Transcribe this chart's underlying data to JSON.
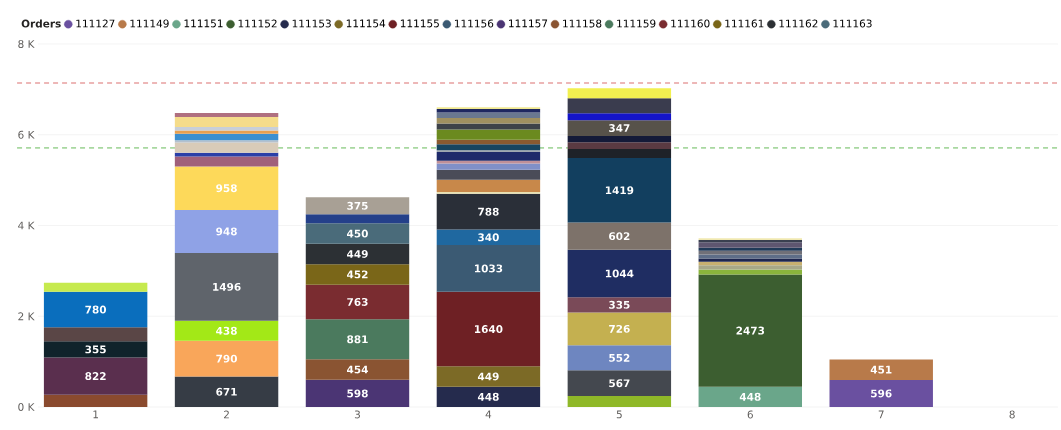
{
  "chart_data": {
    "type": "bar",
    "stacked": true,
    "legend_title": "Orders",
    "legend": "top left",
    "grid": "y",
    "categories": [
      "1",
      "2",
      "3",
      "4",
      "5",
      "6",
      "7",
      "8"
    ],
    "ylim": [
      0,
      8000
    ],
    "yticks": [
      {
        "value": 0,
        "label": "0 K"
      },
      {
        "value": 2000,
        "label": "2 K"
      },
      {
        "value": 4000,
        "label": "4 K"
      },
      {
        "value": 6000,
        "label": "6 K"
      },
      {
        "value": 8000,
        "label": "8 K"
      }
    ],
    "ref_lines": [
      {
        "axis": "y",
        "value": 7140,
        "color": "#e8a0a0",
        "line_style": "dashed"
      },
      {
        "axis": "y",
        "value": 5710,
        "color": "#a8d8a0",
        "line_style": "dashed"
      }
    ],
    "series": [
      {
        "name": "111127",
        "color": "#6a50a0",
        "values": [
          null,
          null,
          null,
          null,
          null,
          null,
          596,
          null
        ],
        "value_labels": [
          null,
          null,
          null,
          null,
          null,
          null,
          "596",
          null
        ]
      },
      {
        "name": "111149",
        "color": "#b87a4a",
        "values": [
          null,
          null,
          null,
          null,
          null,
          null,
          451,
          null
        ],
        "value_labels": [
          null,
          null,
          null,
          null,
          null,
          null,
          "451",
          null
        ]
      },
      {
        "name": "111151",
        "color": "#6aa68a",
        "values": [
          null,
          null,
          null,
          null,
          null,
          448,
          null,
          null
        ],
        "value_labels": [
          null,
          null,
          null,
          null,
          null,
          "448",
          null,
          null
        ]
      },
      {
        "name": "111152",
        "color": "#3c5e30",
        "values": [
          null,
          null,
          null,
          null,
          null,
          2473,
          null,
          null
        ],
        "value_labels": [
          null,
          null,
          null,
          null,
          null,
          "2473",
          null,
          null
        ]
      },
      {
        "name": "111153",
        "color": "#252b4d",
        "values": [
          null,
          null,
          null,
          448,
          null,
          null,
          null,
          null
        ],
        "value_labels": [
          null,
          null,
          null,
          "448",
          null,
          null,
          null,
          null
        ]
      },
      {
        "name": "111154",
        "color": "#7c6a26",
        "values": [
          null,
          null,
          null,
          449,
          null,
          null,
          null,
          null
        ],
        "value_labels": [
          null,
          null,
          null,
          "449",
          null,
          null,
          null,
          null
        ]
      },
      {
        "name": "111155",
        "color": "#6e2024",
        "values": [
          null,
          null,
          null,
          1640,
          null,
          null,
          null,
          null
        ],
        "value_labels": [
          null,
          null,
          null,
          "1640",
          null,
          null,
          null,
          null
        ]
      },
      {
        "name": "111156",
        "color": "#3b5a73",
        "values": [
          null,
          null,
          null,
          1033,
          null,
          null,
          null,
          null
        ],
        "value_labels": [
          null,
          null,
          null,
          "1033",
          null,
          null,
          null,
          null
        ]
      },
      {
        "name": "111157",
        "color": "#4b3574",
        "values": [
          null,
          null,
          598,
          null,
          null,
          null,
          null,
          null
        ],
        "value_labels": [
          null,
          null,
          "598",
          null,
          null,
          null,
          null,
          null
        ]
      },
      {
        "name": "111158",
        "color": "#8a5432",
        "values": [
          null,
          null,
          454,
          null,
          null,
          null,
          null,
          null
        ],
        "value_labels": [
          null,
          null,
          "454",
          null,
          null,
          null,
          null,
          null
        ]
      },
      {
        "name": "111159",
        "color": "#4b7a5e",
        "values": [
          null,
          null,
          881,
          null,
          null,
          null,
          null,
          null
        ],
        "value_labels": [
          null,
          null,
          "881",
          null,
          null,
          null,
          null,
          null
        ]
      },
      {
        "name": "111160",
        "color": "#7a2c30",
        "values": [
          null,
          null,
          763,
          null,
          null,
          null,
          null,
          null
        ],
        "value_labels": [
          null,
          null,
          "763",
          null,
          null,
          null,
          null,
          null
        ]
      },
      {
        "name": "111161",
        "color": "#7a6618",
        "values": [
          null,
          null,
          452,
          null,
          null,
          null,
          null,
          null
        ],
        "value_labels": [
          null,
          null,
          "452",
          null,
          null,
          null,
          null,
          null
        ]
      },
      {
        "name": "111162",
        "color": "#2c3034",
        "values": [
          null,
          null,
          449,
          null,
          null,
          null,
          null,
          null
        ],
        "value_labels": [
          null,
          null,
          "449",
          null,
          null,
          null,
          null,
          null
        ]
      },
      {
        "name": "111163",
        "color": "#4a6b7a",
        "values": [
          null,
          null,
          450,
          null,
          null,
          null,
          null,
          null
        ],
        "value_labels": [
          null,
          null,
          "450",
          null,
          null,
          null,
          null,
          null
        ]
      },
      {
        "color": "#8ab43c",
        "values": [
          null,
          null,
          null,
          null,
          null,
          110,
          null,
          null
        ]
      },
      {
        "color": "#a8a888",
        "values": [
          null,
          null,
          null,
          null,
          null,
          90,
          null,
          null
        ]
      },
      {
        "color": "#c8b070",
        "values": [
          null,
          null,
          null,
          null,
          null,
          80,
          null,
          null
        ]
      },
      {
        "color": "#1e2650",
        "values": [
          null,
          null,
          null,
          null,
          null,
          70,
          null,
          null
        ]
      },
      {
        "color": "#5e6e88",
        "values": [
          null,
          null,
          null,
          null,
          null,
          90,
          null,
          null
        ]
      },
      {
        "color": "#707078",
        "values": [
          null,
          null,
          null,
          null,
          null,
          80,
          null,
          null
        ]
      },
      {
        "color": "#203a58",
        "values": [
          null,
          null,
          null,
          null,
          null,
          70,
          null,
          null
        ]
      },
      {
        "color": "#5e5670",
        "values": [
          null,
          null,
          null,
          null,
          null,
          120,
          null,
          null
        ]
      },
      {
        "color": "#3a4050",
        "values": [
          null,
          null,
          null,
          null,
          null,
          50,
          null,
          null
        ]
      },
      {
        "color": "#f0e8b0",
        "values": [
          null,
          null,
          null,
          null,
          null,
          40,
          null,
          null
        ]
      },
      {
        "color": "#1f68a0",
        "values": [
          null,
          null,
          null,
          340,
          null,
          null,
          null,
          null
        ],
        "value_labels": [
          null,
          null,
          null,
          "340",
          null,
          null,
          null,
          null
        ]
      },
      {
        "color": "#2a2f38",
        "values": [
          null,
          null,
          null,
          788,
          null,
          null,
          null,
          null
        ],
        "value_labels": [
          null,
          null,
          null,
          "788",
          null,
          null,
          null,
          null
        ]
      },
      {
        "color": "#e8e0b0",
        "values": [
          null,
          null,
          null,
          40,
          null,
          null,
          null,
          null
        ]
      },
      {
        "color": "#c8884a",
        "values": [
          null,
          null,
          null,
          270,
          null,
          null,
          null,
          null
        ]
      },
      {
        "color": "#4a4c58",
        "values": [
          null,
          null,
          null,
          220,
          null,
          null,
          null,
          null
        ]
      },
      {
        "color": "#8090c8",
        "values": [
          null,
          null,
          null,
          140,
          null,
          null,
          null,
          null
        ]
      },
      {
        "color": "#c09098",
        "values": [
          null,
          null,
          null,
          60,
          null,
          null,
          null,
          null
        ]
      },
      {
        "color": "#1e2a6a",
        "values": [
          null,
          null,
          null,
          190,
          null,
          null,
          null,
          null
        ]
      },
      {
        "color": "#a0a8b0",
        "values": [
          null,
          null,
          null,
          40,
          null,
          null,
          null,
          null
        ]
      },
      {
        "color": "#174560",
        "values": [
          null,
          null,
          null,
          130,
          null,
          null,
          null,
          null
        ]
      },
      {
        "color": "#8a5a30",
        "values": [
          null,
          null,
          null,
          100,
          null,
          null,
          null,
          null
        ]
      },
      {
        "color": "#6b8a1f",
        "values": [
          null,
          null,
          null,
          230,
          null,
          null,
          null,
          null
        ]
      },
      {
        "color": "#3e4248",
        "values": [
          null,
          null,
          null,
          130,
          null,
          null,
          null,
          null
        ]
      },
      {
        "color": "#a09060",
        "values": [
          null,
          null,
          null,
          120,
          null,
          null,
          null,
          null
        ]
      },
      {
        "color": "#6a7890",
        "values": [
          null,
          null,
          null,
          120,
          null,
          null,
          null,
          null
        ]
      },
      {
        "color": "#1f2860",
        "values": [
          null,
          null,
          null,
          80,
          null,
          null,
          null,
          null
        ]
      },
      {
        "color": "#f0e890",
        "values": [
          null,
          null,
          null,
          40,
          null,
          null,
          null,
          null
        ]
      },
      {
        "color": "#24408a",
        "values": [
          null,
          null,
          200,
          null,
          null,
          null,
          null,
          null
        ]
      },
      {
        "color": "#a8a095",
        "values": [
          null,
          null,
          375,
          null,
          null,
          null,
          null,
          null
        ],
        "value_labels": [
          null,
          null,
          "375",
          null,
          null,
          null,
          null,
          null
        ]
      },
      {
        "color": "#8a4a2e",
        "values": [
          270,
          null,
          null,
          null,
          null,
          null,
          null,
          null
        ]
      },
      {
        "color": "#5a2f4e",
        "values": [
          822,
          null,
          null,
          null,
          null,
          null,
          null,
          null
        ],
        "value_labels": [
          "822",
          null,
          null,
          null,
          null,
          null,
          null,
          null
        ]
      },
      {
        "color": "#10232b",
        "values": [
          355,
          null,
          null,
          null,
          null,
          null,
          null,
          null
        ],
        "value_labels": [
          "355",
          null,
          null,
          null,
          null,
          null,
          null,
          null
        ]
      },
      {
        "color": "#5a4646",
        "values": [
          310,
          null,
          null,
          null,
          null,
          null,
          null,
          null
        ]
      },
      {
        "color": "#0a6ebd",
        "values": [
          780,
          null,
          null,
          null,
          null,
          null,
          null,
          null
        ],
        "value_labels": [
          "780",
          null,
          null,
          null,
          null,
          null,
          null,
          null
        ]
      },
      {
        "color": "#c6ea4e",
        "values": [
          200,
          null,
          null,
          null,
          null,
          null,
          null,
          null
        ]
      },
      {
        "color": "#363c45",
        "values": [
          null,
          671,
          null,
          null,
          null,
          null,
          null,
          null
        ],
        "value_labels": [
          null,
          "671",
          null,
          null,
          null,
          null,
          null,
          null
        ]
      },
      {
        "color": "#f9a65a",
        "values": [
          null,
          790,
          null,
          null,
          null,
          null,
          null,
          null
        ],
        "value_labels": [
          null,
          "790",
          null,
          null,
          null,
          null,
          null,
          null
        ]
      },
      {
        "color": "#a3e817",
        "values": [
          null,
          438,
          null,
          null,
          null,
          null,
          null,
          null
        ],
        "value_labels": [
          null,
          "438",
          null,
          null,
          null,
          null,
          null,
          null
        ]
      },
      {
        "color": "#5f646b",
        "values": [
          null,
          1496,
          null,
          null,
          null,
          null,
          null,
          null
        ],
        "value_labels": [
          null,
          "1496",
          null,
          null,
          null,
          null,
          null,
          null
        ]
      },
      {
        "color": "#8fa2e6",
        "values": [
          null,
          948,
          null,
          null,
          null,
          null,
          null,
          null
        ],
        "value_labels": [
          null,
          "948",
          null,
          null,
          null,
          null,
          null,
          null
        ]
      },
      {
        "color": "#fdd95a",
        "values": [
          null,
          958,
          null,
          null,
          null,
          null,
          null,
          null
        ],
        "value_labels": [
          null,
          "958",
          null,
          null,
          null,
          null,
          null,
          null
        ]
      },
      {
        "color": "#a0607a",
        "values": [
          null,
          220,
          null,
          null,
          null,
          null,
          null,
          null
        ]
      },
      {
        "color": "#2a3fa8",
        "values": [
          null,
          80,
          null,
          null,
          null,
          null,
          null,
          null
        ]
      },
      {
        "color": "#d8cbb8",
        "values": [
          null,
          230,
          null,
          null,
          null,
          null,
          null,
          null
        ]
      },
      {
        "color": "#b4c0cc",
        "values": [
          null,
          50,
          null,
          null,
          null,
          null,
          null,
          null
        ]
      },
      {
        "color": "#3b8fd0",
        "values": [
          null,
          140,
          null,
          null,
          null,
          null,
          null,
          null
        ]
      },
      {
        "color": "#e8a050",
        "values": [
          null,
          70,
          null,
          null,
          null,
          null,
          null,
          null
        ]
      },
      {
        "color": "#c8cfd8",
        "values": [
          null,
          80,
          null,
          null,
          null,
          null,
          null,
          null
        ]
      },
      {
        "color": "#f5dc8a",
        "values": [
          null,
          220,
          null,
          null,
          null,
          null,
          null,
          null
        ]
      },
      {
        "color": "#b07080",
        "values": [
          null,
          90,
          null,
          null,
          null,
          null,
          null,
          null
        ]
      },
      {
        "color": "#8fb828",
        "values": [
          null,
          null,
          null,
          null,
          240,
          null,
          null,
          null
        ]
      },
      {
        "color": "#44484f",
        "values": [
          null,
          null,
          null,
          null,
          567,
          null,
          null,
          null
        ],
        "value_labels": [
          null,
          null,
          null,
          null,
          "567",
          null,
          null,
          null
        ]
      },
      {
        "color": "#6e86c0",
        "values": [
          null,
          null,
          null,
          null,
          552,
          null,
          null,
          null
        ],
        "value_labels": [
          null,
          null,
          null,
          null,
          "552",
          null,
          null,
          null
        ]
      },
      {
        "color": "#c4b050",
        "values": [
          null,
          null,
          null,
          null,
          726,
          null,
          null,
          null
        ],
        "value_labels": [
          null,
          null,
          null,
          null,
          "726",
          null,
          null,
          null
        ]
      },
      {
        "color": "#7a4a58",
        "values": [
          null,
          null,
          null,
          null,
          335,
          null,
          null,
          null
        ],
        "value_labels": [
          null,
          null,
          null,
          null,
          "335",
          null,
          null,
          null
        ]
      },
      {
        "color": "#1f2d62",
        "values": [
          null,
          null,
          null,
          null,
          1044,
          null,
          null,
          null
        ],
        "value_labels": [
          null,
          null,
          null,
          null,
          "1044",
          null,
          null,
          null
        ]
      },
      {
        "color": "#7d726a",
        "values": [
          null,
          null,
          null,
          null,
          602,
          null,
          null,
          null
        ],
        "value_labels": [
          null,
          null,
          null,
          null,
          "602",
          null,
          null,
          null
        ]
      },
      {
        "color": "#123f5f",
        "values": [
          null,
          null,
          null,
          null,
          1419,
          null,
          null,
          null
        ],
        "value_labels": [
          null,
          null,
          null,
          null,
          "1419",
          null,
          null,
          null
        ]
      },
      {
        "color": "#1e2228",
        "values": [
          null,
          null,
          null,
          null,
          200,
          null,
          null,
          null
        ]
      },
      {
        "color": "#5a3a42",
        "values": [
          null,
          null,
          null,
          null,
          150,
          null,
          null,
          null
        ]
      },
      {
        "color": "#141a38",
        "values": [
          null,
          null,
          null,
          null,
          140,
          null,
          null,
          null
        ]
      },
      {
        "color": "#57524a",
        "values": [
          null,
          null,
          null,
          null,
          347,
          null,
          null,
          null
        ],
        "value_labels": [
          null,
          null,
          null,
          null,
          "347",
          null,
          null,
          null
        ]
      },
      {
        "color": "#1414c8",
        "values": [
          null,
          null,
          null,
          null,
          150,
          null,
          null,
          null
        ]
      },
      {
        "color": "#3a3c4e",
        "values": [
          null,
          null,
          null,
          null,
          330,
          null,
          null,
          null
        ]
      },
      {
        "color": "#f2f050",
        "values": [
          null,
          null,
          null,
          null,
          220,
          null,
          null,
          null
        ]
      }
    ]
  }
}
